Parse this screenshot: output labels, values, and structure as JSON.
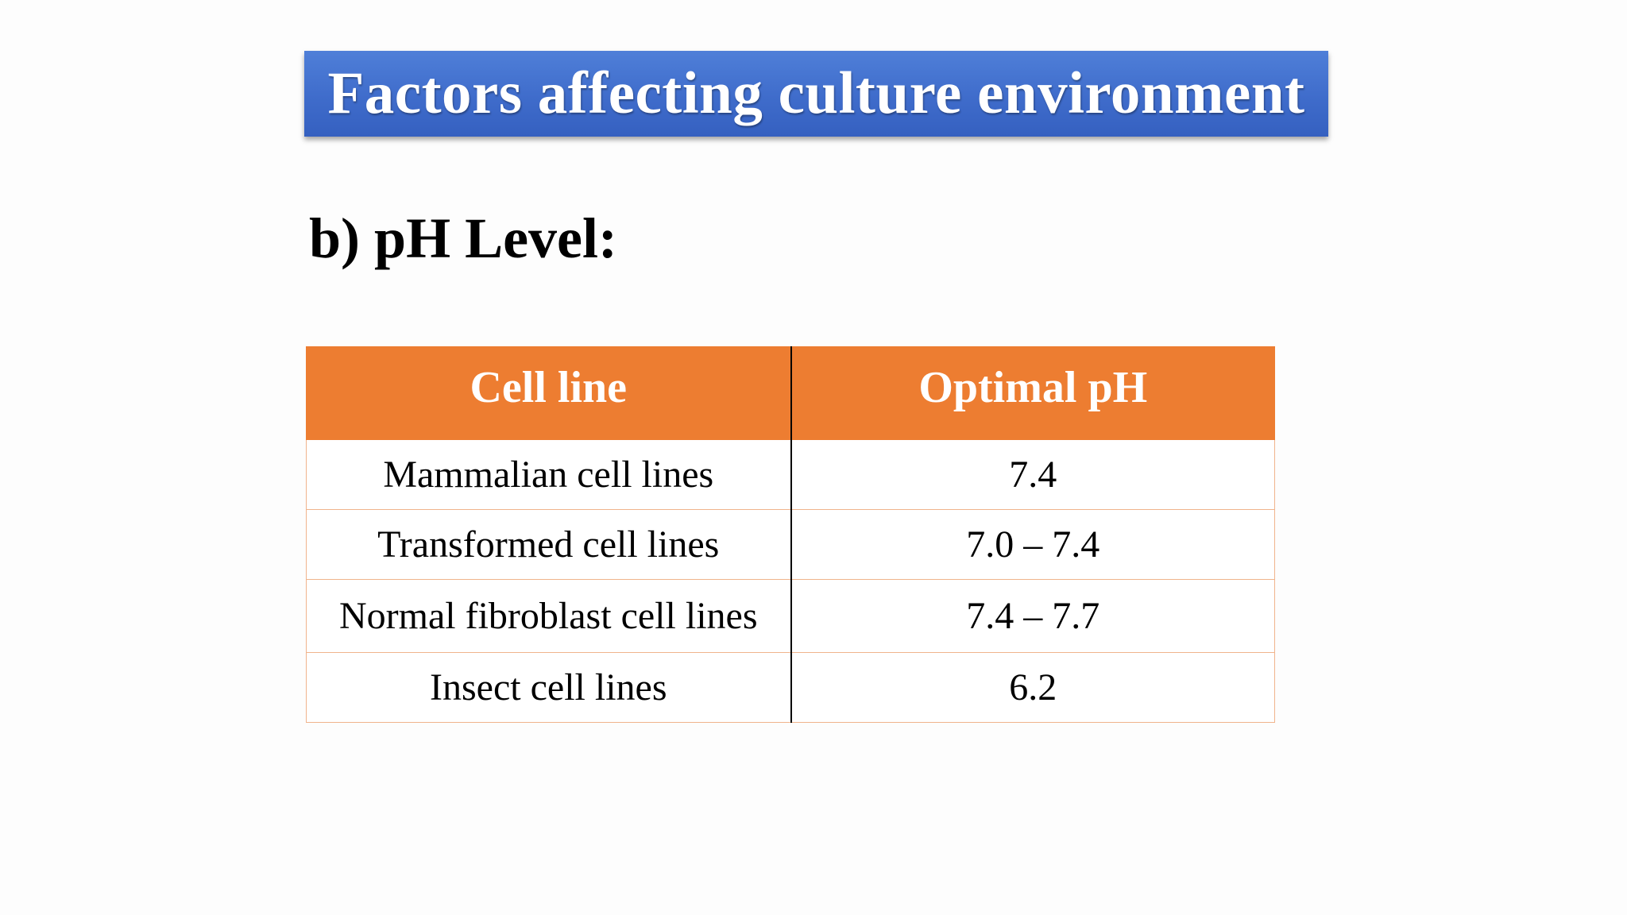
{
  "slide": {
    "title": "Factors affecting culture environment",
    "section_heading": "b) pH Level:",
    "colors": {
      "title_banner": "#4472c4",
      "header_row": "#ed7d31",
      "row_border": "#f0b48c"
    },
    "table": {
      "headers": [
        "Cell line",
        "Optimal pH"
      ],
      "rows": [
        {
          "cell_line": "Mammalian cell lines",
          "optimal_ph": "7.4"
        },
        {
          "cell_line": "Transformed cell lines",
          "optimal_ph": "7.0 – 7.4"
        },
        {
          "cell_line": "Normal fibroblast cell lines",
          "optimal_ph": "7.4 – 7.7"
        },
        {
          "cell_line": "Insect cell lines",
          "optimal_ph": "6.2"
        }
      ]
    }
  }
}
